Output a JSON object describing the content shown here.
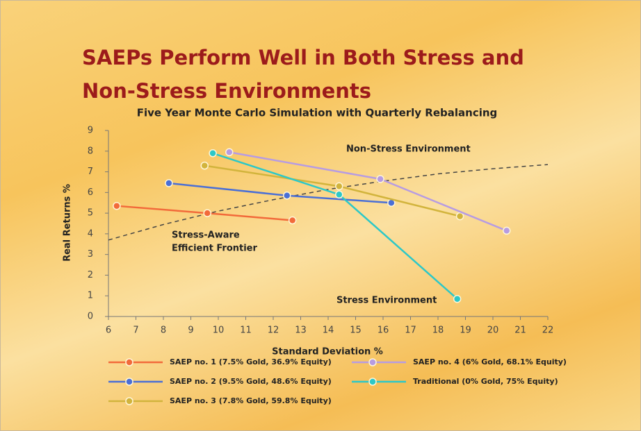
{
  "title": "SAEPs Perform Well in Both Stress and Non-Stress Environments",
  "chart_data": {
    "type": "line",
    "title": "Five Year Monte Carlo Simulation with Quarterly Rebalancing",
    "x_label": "Standard Deviation %",
    "y_label": "Real Returns %",
    "xlim": [
      6,
      22
    ],
    "xticks": [
      6,
      7,
      8,
      9,
      10,
      11,
      12,
      13,
      14,
      15,
      16,
      17,
      18,
      19,
      20,
      21,
      22
    ],
    "ylim": [
      0,
      9
    ],
    "yticks": [
      0,
      1,
      2,
      3,
      4,
      5,
      6,
      7,
      8,
      9
    ],
    "series": [
      {
        "name": "SAEP no. 1 (7.5% Gold, 36.9% Equity)",
        "color": "#f26a3a",
        "x": [
          6.3,
          9.6,
          12.7
        ],
        "values": [
          5.35,
          5.0,
          4.65
        ]
      },
      {
        "name": "SAEP no. 2 (9.5% Gold, 48.6% Equity)",
        "color": "#4a6fd6",
        "x": [
          8.2,
          12.5,
          16.3
        ],
        "values": [
          6.45,
          5.85,
          5.5
        ]
      },
      {
        "name": "SAEP no. 3 (7.8% Gold, 59.8% Equity)",
        "color": "#d2b43c",
        "x": [
          9.5,
          14.4,
          18.8
        ],
        "values": [
          7.3,
          6.3,
          4.85
        ]
      },
      {
        "name": "SAEP no. 4 (6% Gold, 68.1% Equity)",
        "color": "#b79ce2",
        "x": [
          10.4,
          15.9,
          20.5
        ],
        "values": [
          7.95,
          6.65,
          4.15
        ]
      },
      {
        "name": "Traditional (0% Gold, 75% Equity)",
        "color": "#2cc8c8",
        "x": [
          9.8,
          14.4,
          18.7
        ],
        "values": [
          7.9,
          5.9,
          0.85
        ]
      }
    ],
    "frontier": {
      "label": [
        "Stress-Aware",
        "Efficient Frontier"
      ],
      "color": "#444444",
      "x": [
        6,
        8,
        10,
        12,
        14,
        16,
        18,
        20,
        22
      ],
      "values": [
        3.7,
        4.45,
        5.1,
        5.65,
        6.15,
        6.55,
        6.9,
        7.15,
        7.35
      ]
    },
    "annotations": [
      "Non-Stress Environment",
      "Stress Environment"
    ]
  }
}
